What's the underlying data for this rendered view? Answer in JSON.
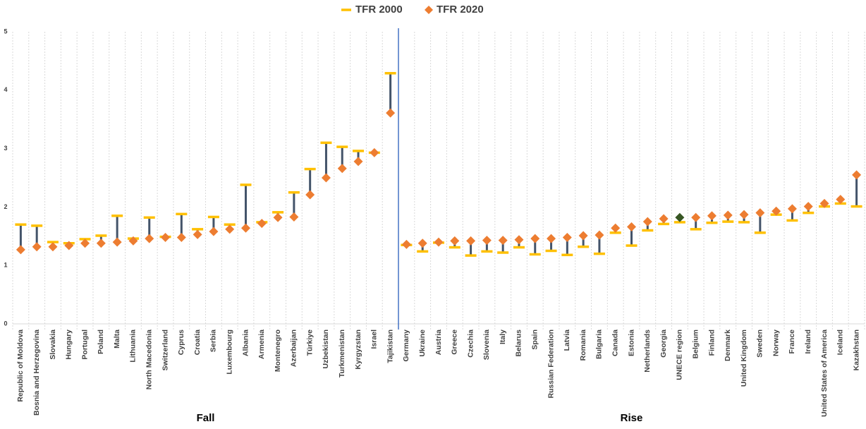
{
  "chart_data": {
    "type": "dumbbell",
    "categories": [
      "Republic of Moldova",
      "Bosnia and Herzegovina",
      "Slovakia",
      "Hungary",
      "Portugal",
      "Poland",
      "Malta",
      "Lithuania",
      "North Macedonia",
      "Switzerland",
      "Cyprus",
      "Croatia",
      "Serbia",
      "Luxembourg",
      "Albania",
      "Armenia",
      "Montenegro",
      "Azerbaijan",
      "Türkiye",
      "Uzbekistan",
      "Turkmenistan",
      "Kyrgyzstan",
      "Israel",
      "Tajikistan",
      "Germany",
      "Ukraine",
      "Austria",
      "Greece",
      "Czechia",
      "Slovenia",
      "Italy",
      "Belarus",
      "Spain",
      "Russian Federation",
      "Latvia",
      "Romania",
      "Bulgaria",
      "Canada",
      "Estonia",
      "Netherlands",
      "Georgia",
      "UNECE region",
      "Belgium",
      "Finland",
      "Denmark",
      "United Kingdom",
      "Sweden",
      "Norway",
      "France",
      "Ireland",
      "United States of America",
      "Iceland",
      "Kazakhstan"
    ],
    "series": [
      {
        "name": "TFR 2000",
        "color": "#ffc000",
        "marker": "dash",
        "values": [
          1.7,
          1.68,
          1.4,
          1.38,
          1.45,
          1.51,
          1.85,
          1.46,
          1.82,
          1.49,
          1.88,
          1.62,
          1.83,
          1.7,
          2.38,
          1.74,
          1.91,
          2.25,
          2.65,
          3.1,
          3.03,
          2.96,
          2.93,
          4.29,
          1.35,
          1.24,
          1.39,
          1.31,
          1.17,
          1.24,
          1.22,
          1.31,
          1.19,
          1.25,
          1.18,
          1.32,
          1.2,
          1.56,
          1.34,
          1.6,
          1.71,
          1.74,
          1.62,
          1.73,
          1.75,
          1.74,
          1.56,
          1.87,
          1.77,
          1.9,
          2.01,
          2.06,
          2.01
        ]
      },
      {
        "name": "TFR 2020",
        "color": "#ed7d31",
        "marker": "diamond",
        "values": [
          1.27,
          1.32,
          1.32,
          1.34,
          1.38,
          1.38,
          1.4,
          1.42,
          1.46,
          1.48,
          1.48,
          1.53,
          1.58,
          1.62,
          1.64,
          1.72,
          1.82,
          1.83,
          2.21,
          2.5,
          2.66,
          2.78,
          2.93,
          3.61,
          1.36,
          1.38,
          1.4,
          1.42,
          1.42,
          1.43,
          1.43,
          1.44,
          1.46,
          1.46,
          1.48,
          1.51,
          1.52,
          1.64,
          1.66,
          1.75,
          1.8,
          1.82,
          1.82,
          1.85,
          1.86,
          1.87,
          1.9,
          1.93,
          1.97,
          2.01,
          2.06,
          2.13,
          2.55
        ]
      }
    ],
    "connector_color": "#44546a",
    "highlight": {
      "category": "UNECE region",
      "color": "#375623"
    },
    "groups": [
      {
        "label": "Fall",
        "count": 24
      },
      {
        "label": "Rise",
        "count": 29
      }
    ],
    "divider_color": "#4472c4",
    "ylim": [
      0,
      5
    ],
    "yticks": [
      0,
      1,
      2,
      3,
      4,
      5
    ],
    "grid": "x"
  }
}
